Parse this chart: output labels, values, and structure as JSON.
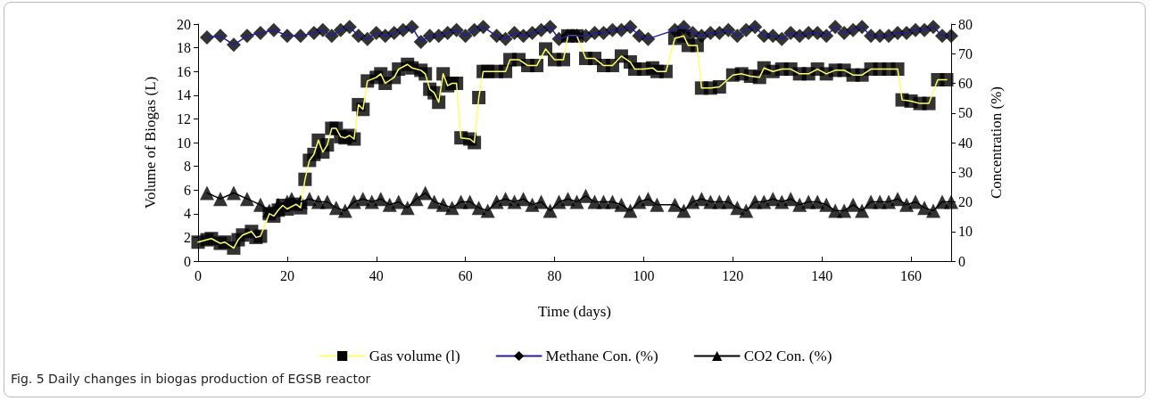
{
  "chart_data": {
    "type": "line",
    "xlabel": "Time (days)",
    "ylabel": "Volume of Biogas (L)",
    "y2label": "Concentration (%)",
    "annotations": [
      "Fig. 5 Daily changes in biogas production of EGSB reactor"
    ],
    "xlim": [
      0,
      169
    ],
    "xticks": [
      0,
      20,
      40,
      60,
      80,
      100,
      120,
      140,
      160
    ],
    "ylim": [
      0,
      20
    ],
    "yticks": [
      0,
      2,
      4,
      6,
      8,
      10,
      12,
      14,
      16,
      18,
      20
    ],
    "y2lim": [
      0,
      80
    ],
    "y2ticks": [
      0,
      10,
      20,
      30,
      40,
      50,
      60,
      70,
      80
    ],
    "grid": false,
    "legend": "bottom",
    "series": [
      {
        "name": "Gas volume (l)",
        "color": "#ffff66",
        "marker": "square",
        "x": [
          0,
          2,
          3,
          5,
          6,
          8,
          9,
          10,
          12,
          13,
          14,
          16,
          17,
          18,
          19,
          20,
          22,
          23,
          24,
          25,
          26,
          27,
          28,
          29,
          30,
          31,
          32,
          33,
          34,
          35,
          36,
          37,
          38,
          40,
          41,
          42,
          44,
          45,
          47,
          48,
          50,
          51,
          52,
          53,
          54,
          55,
          56,
          57,
          58,
          59,
          61,
          62,
          63,
          64,
          65,
          67,
          69,
          70,
          72,
          74,
          76,
          78,
          80,
          82,
          83,
          85,
          87,
          89,
          91,
          93,
          95,
          97,
          98,
          100,
          102,
          103,
          105,
          107,
          109,
          110,
          112,
          113,
          115,
          117,
          120,
          122,
          124,
          126,
          127,
          129,
          131,
          133,
          135,
          137,
          139,
          141,
          143,
          145,
          147,
          149,
          151,
          153,
          155,
          157,
          158,
          160,
          162,
          164,
          166,
          168
        ],
        "values": [
          1.6,
          1.8,
          1.9,
          1.5,
          1.6,
          1.1,
          1.8,
          2.2,
          2.5,
          2.0,
          2.1,
          4.0,
          3.8,
          4.3,
          4.7,
          4.4,
          4.8,
          4.5,
          6.9,
          8.5,
          9.0,
          10.2,
          9.2,
          9.8,
          11.2,
          11.2,
          10.5,
          10.4,
          10.6,
          10.3,
          13.2,
          12.8,
          15.2,
          15.5,
          15.8,
          15.0,
          15.5,
          16.2,
          16.6,
          16.3,
          16.1,
          15.8,
          14.5,
          14.2,
          13.4,
          15.8,
          14.8,
          15.0,
          15.0,
          10.4,
          10.3,
          10.0,
          13.8,
          16.0,
          16.0,
          16.0,
          16.0,
          17.0,
          17.0,
          16.5,
          16.5,
          17.9,
          17.0,
          17.0,
          19.0,
          19.0,
          17.1,
          17.1,
          16.5,
          16.5,
          17.3,
          16.8,
          16.2,
          16.2,
          16.3,
          16.0,
          16.0,
          18.8,
          19.0,
          18.2,
          18.2,
          14.6,
          14.6,
          14.7,
          15.7,
          15.8,
          15.6,
          15.5,
          16.3,
          16.0,
          16.2,
          16.2,
          15.8,
          15.8,
          16.2,
          15.8,
          16.1,
          16.1,
          15.7,
          15.7,
          16.2,
          16.2,
          16.2,
          16.2,
          13.6,
          13.5,
          13.3,
          13.3,
          15.3,
          15.3
        ]
      },
      {
        "name": "Methane Con. (%)",
        "color": "#1f1f9e",
        "marker": "diamond",
        "axis": "y2",
        "x": [
          2,
          5,
          8,
          11,
          14,
          17,
          20,
          23,
          26,
          28,
          30,
          32,
          34,
          36,
          38,
          40,
          42,
          44,
          46,
          48,
          50,
          52,
          54,
          56,
          58,
          60,
          62,
          64,
          67,
          69,
          71,
          73,
          75,
          77,
          79,
          81,
          83,
          85,
          87,
          89,
          91,
          93,
          95,
          97,
          99,
          101,
          107,
          109,
          111,
          113,
          115,
          117,
          119,
          121,
          123,
          125,
          127,
          129,
          131,
          133,
          135,
          137,
          139,
          141,
          143,
          145,
          147,
          149,
          151,
          153,
          155,
          157,
          159,
          161,
          163,
          165,
          167,
          169
        ],
        "values": [
          75.5,
          76,
          73,
          76,
          77,
          78,
          76,
          76,
          77,
          78,
          76,
          78,
          79,
          76,
          75,
          77,
          76,
          77,
          78,
          79,
          74,
          76,
          76,
          77,
          78,
          76,
          78,
          79,
          76,
          75,
          77,
          76,
          77,
          78,
          79,
          75,
          76,
          76,
          76,
          77,
          77,
          78,
          78,
          79,
          76,
          75,
          78,
          79,
          77,
          76,
          77,
          77,
          78,
          76,
          78,
          79,
          76,
          76,
          75,
          77,
          76,
          77,
          77,
          76,
          79,
          77,
          78,
          79,
          76,
          76,
          76,
          77,
          77,
          78,
          78,
          79,
          76,
          76
        ]
      },
      {
        "name": "CO2 Con. (%)",
        "color": "#000000",
        "marker": "triangle",
        "axis": "y2",
        "x": [
          2,
          5,
          8,
          11,
          14,
          16,
          18,
          20,
          21,
          23,
          25,
          27,
          29,
          31,
          33,
          35,
          37,
          39,
          41,
          43,
          45,
          47,
          49,
          51,
          53,
          55,
          57,
          59,
          61,
          63,
          65,
          67,
          69,
          71,
          73,
          75,
          77,
          79,
          81,
          83,
          85,
          87,
          89,
          91,
          93,
          95,
          97,
          99,
          101,
          103,
          107,
          109,
          111,
          113,
          115,
          117,
          119,
          121,
          123,
          125,
          127,
          129,
          131,
          133,
          135,
          137,
          139,
          141,
          143,
          145,
          147,
          149,
          151,
          153,
          155,
          157,
          159,
          161,
          163,
          165,
          167,
          169
        ],
        "values": [
          23,
          21,
          23,
          21,
          19,
          17,
          19,
          20,
          21,
          20,
          21,
          20,
          20,
          18,
          17,
          20,
          21,
          20,
          21,
          19,
          20,
          18,
          21,
          23,
          20,
          19,
          18,
          20,
          20,
          18,
          17,
          20,
          21,
          20,
          21,
          19,
          20,
          17,
          20,
          21,
          20,
          22,
          20,
          20,
          20,
          19,
          17,
          20,
          21,
          19,
          19,
          17,
          20,
          21,
          20,
          20,
          20,
          18,
          17,
          20,
          20,
          21,
          20,
          21,
          19,
          20,
          20,
          19,
          17,
          17,
          19,
          17,
          20,
          20,
          20,
          21,
          19,
          20,
          18,
          17,
          20,
          20
        ]
      }
    ]
  }
}
